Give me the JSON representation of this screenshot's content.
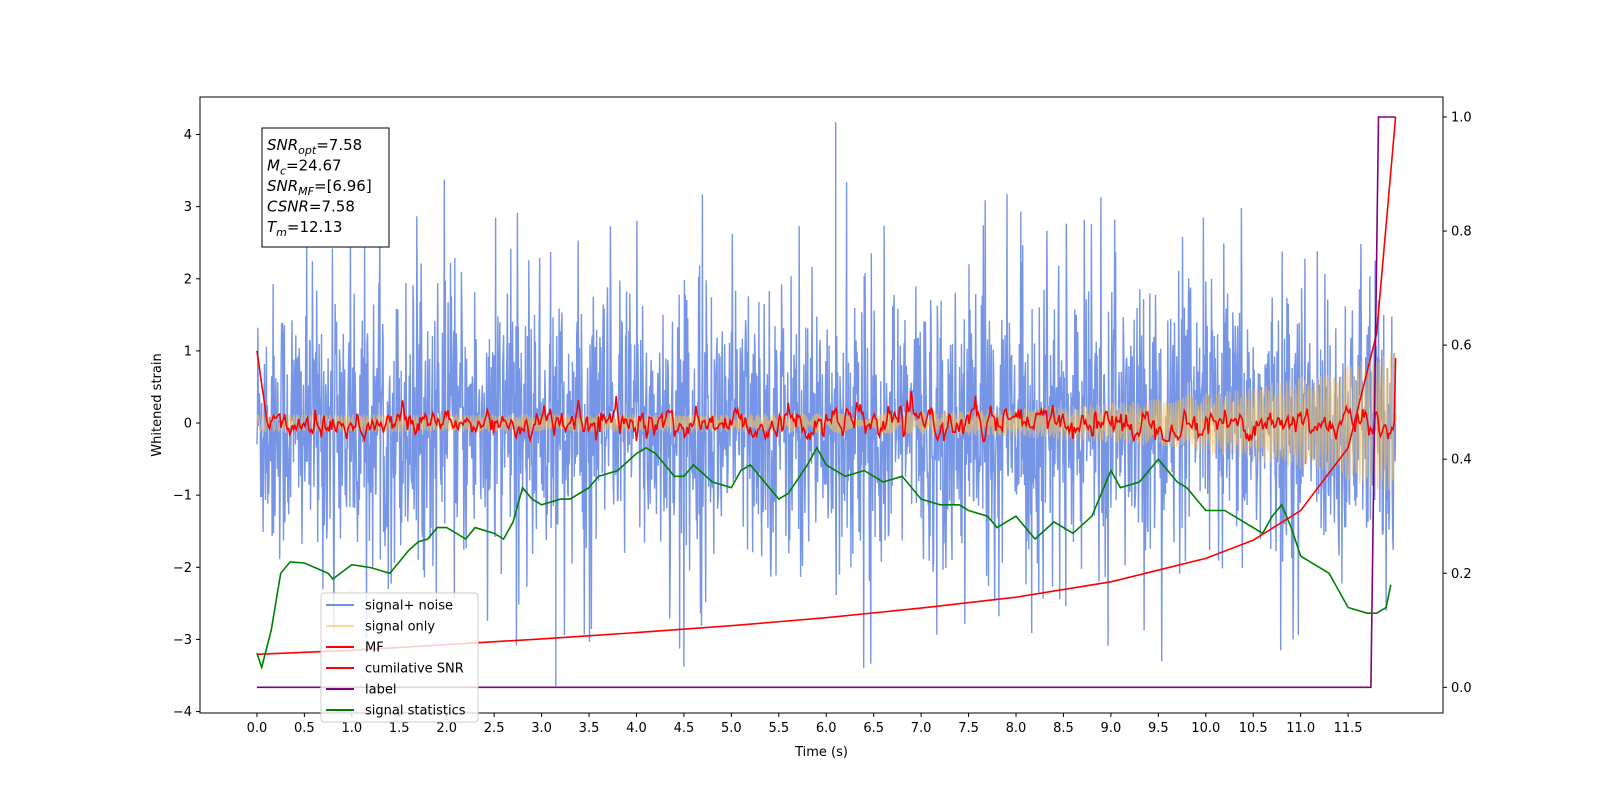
{
  "chart_data": {
    "type": "line",
    "xlabel": "Time (s)",
    "ylabel_left": "Whitened strain",
    "ylabel_right": "",
    "xlim": [
      -0.6,
      12.5
    ],
    "ylim_left": [
      -4.02,
      4.52
    ],
    "ylim_right": [
      -0.045,
      1.035
    ],
    "x_ticks": [
      0.0,
      0.5,
      1.0,
      1.5,
      2.0,
      2.5,
      3.0,
      3.5,
      4.0,
      4.5,
      5.0,
      5.5,
      6.0,
      6.5,
      7.0,
      7.5,
      8.0,
      8.5,
      9.0,
      9.5,
      10.0,
      10.5,
      11.0,
      11.5
    ],
    "x_tick_labels": [
      "0.0",
      "0.5",
      "1.0",
      "1.5",
      "2.0",
      "2.5",
      "3.0",
      "3.5",
      "4.0",
      "4.5",
      "5.0",
      "5.5",
      "6.0",
      "6.5",
      "7.0",
      "7.5",
      "8.0",
      "8.5",
      "9.0",
      "9.5",
      "10.0",
      "10.5",
      "11.0",
      "11.5"
    ],
    "y_ticks_left": [
      -4,
      -3,
      -2,
      -1,
      0,
      1,
      2,
      3,
      4
    ],
    "y_tick_labels_left": [
      "−4",
      "−3",
      "−2",
      "−1",
      "0",
      "1",
      "2",
      "3",
      "4"
    ],
    "y_ticks_right": [
      0.0,
      0.2,
      0.4,
      0.6,
      0.8,
      1.0
    ],
    "y_tick_labels_right": [
      "0.0",
      "0.2",
      "0.4",
      "0.6",
      "0.8",
      "1.0"
    ],
    "grid": false,
    "legend_position": "lower-left",
    "stats_box": {
      "lines": [
        {
          "main": "SNR",
          "sub": "opt",
          "rest": "=7.58"
        },
        {
          "main": "M",
          "sub": "c",
          "rest": "=24.67"
        },
        {
          "main": "SNR",
          "sub": "MF",
          "rest": "=[6.96]"
        },
        {
          "main": "CSNR",
          "sub": "",
          "rest": "=7.58"
        },
        {
          "main": "T",
          "sub": "m",
          "rest": "=12.13"
        }
      ]
    },
    "series": [
      {
        "name": "signal+ noise",
        "axis": "left",
        "color": "#6f8fe6",
        "kind": "noise",
        "x_range": [
          0.0,
          12.0
        ],
        "std": 0.95,
        "typical_range": [
          -2.3,
          2.4
        ],
        "extremes": [
          -3.65,
          4.17
        ]
      },
      {
        "name": "signal only",
        "axis": "left",
        "color": "#f5c15a",
        "kind": "chirp",
        "x_range": [
          0.0,
          12.0
        ],
        "amplitude_start": 0.12,
        "amplitude_end": 1.0
      },
      {
        "name": "MF",
        "axis": "left",
        "color": "#ff0000",
        "kind": "matched-filter",
        "x_range": [
          0.0,
          12.0
        ],
        "start_value": 1.0,
        "end_value": 0.9,
        "noise_band": [
          -0.25,
          0.5
        ]
      },
      {
        "name": "cumilative SNR",
        "axis": "right",
        "color": "#ff0000",
        "kind": "cumulative",
        "x": [
          0.0,
          1.0,
          2.0,
          3.0,
          4.0,
          5.0,
          6.0,
          7.0,
          8.0,
          9.0,
          10.0,
          10.5,
          11.0,
          11.5,
          11.8,
          12.0
        ],
        "y": [
          0.058,
          0.065,
          0.075,
          0.085,
          0.096,
          0.108,
          0.122,
          0.139,
          0.158,
          0.185,
          0.226,
          0.258,
          0.31,
          0.42,
          0.62,
          1.0
        ]
      },
      {
        "name": "label",
        "axis": "right",
        "color": "#800080",
        "kind": "step",
        "x": [
          0.0,
          11.74,
          11.82,
          12.0
        ],
        "y": [
          0.0,
          0.0,
          1.0,
          1.0
        ]
      },
      {
        "name": "signal statistics",
        "axis": "right",
        "color": "#008000",
        "kind": "line",
        "x": [
          0.0,
          0.05,
          0.15,
          0.25,
          0.35,
          0.5,
          0.75,
          0.8,
          1.0,
          1.2,
          1.4,
          1.5,
          1.6,
          1.7,
          1.8,
          1.9,
          2.0,
          2.2,
          2.3,
          2.5,
          2.6,
          2.7,
          2.8,
          2.9,
          3.0,
          3.2,
          3.3,
          3.5,
          3.6,
          3.8,
          4.0,
          4.1,
          4.2,
          4.4,
          4.5,
          4.6,
          4.8,
          5.0,
          5.1,
          5.2,
          5.4,
          5.5,
          5.6,
          5.8,
          5.9,
          6.0,
          6.2,
          6.4,
          6.6,
          6.8,
          7.0,
          7.2,
          7.4,
          7.5,
          7.7,
          7.8,
          8.0,
          8.2,
          8.4,
          8.6,
          8.8,
          9.0,
          9.1,
          9.3,
          9.4,
          9.5,
          9.7,
          9.8,
          9.9,
          10.0,
          10.2,
          10.4,
          10.6,
          10.7,
          10.8,
          10.9,
          11.0,
          11.1,
          11.2,
          11.3,
          11.4,
          11.5,
          11.7,
          11.8,
          11.9,
          11.95
        ],
        "y": [
          0.06,
          0.035,
          0.1,
          0.2,
          0.22,
          0.218,
          0.2,
          0.19,
          0.215,
          0.21,
          0.2,
          0.22,
          0.24,
          0.255,
          0.26,
          0.28,
          0.28,
          0.26,
          0.28,
          0.27,
          0.26,
          0.29,
          0.35,
          0.33,
          0.32,
          0.33,
          0.33,
          0.35,
          0.37,
          0.38,
          0.41,
          0.42,
          0.41,
          0.37,
          0.37,
          0.39,
          0.36,
          0.35,
          0.38,
          0.39,
          0.35,
          0.33,
          0.34,
          0.39,
          0.42,
          0.39,
          0.37,
          0.38,
          0.36,
          0.37,
          0.33,
          0.32,
          0.32,
          0.31,
          0.3,
          0.28,
          0.3,
          0.26,
          0.29,
          0.27,
          0.3,
          0.38,
          0.35,
          0.36,
          0.38,
          0.4,
          0.36,
          0.35,
          0.33,
          0.31,
          0.31,
          0.29,
          0.27,
          0.3,
          0.32,
          0.28,
          0.23,
          0.22,
          0.21,
          0.2,
          0.17,
          0.14,
          0.13,
          0.13,
          0.14,
          0.18
        ]
      }
    ]
  }
}
